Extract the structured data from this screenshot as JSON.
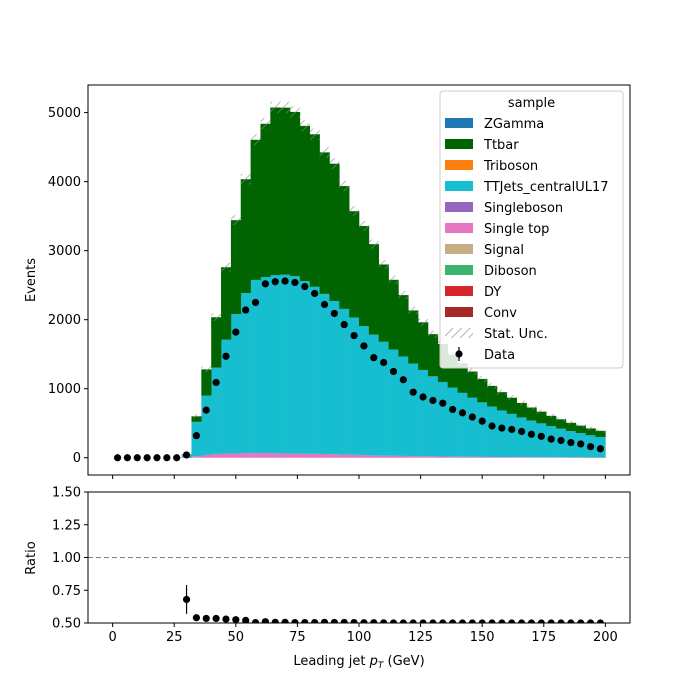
{
  "chart_data": {
    "type": "bar",
    "stacked": true,
    "xlabel": "Leading jet  p_T (GeV)",
    "main": {
      "ylabel": "Events",
      "xlim": [
        -10,
        210
      ],
      "ylim": [
        -250,
        5400
      ],
      "yticks": [
        0,
        1000,
        2000,
        3000,
        4000,
        5000
      ]
    },
    "ratio": {
      "ylabel": "Ratio",
      "ylim": [
        0.5,
        1.5
      ],
      "yticks": [
        "0.50",
        "0.75",
        "1.00",
        "1.25",
        "1.50"
      ],
      "reference_line": 1.0
    },
    "xticks": [
      0,
      25,
      50,
      75,
      100,
      125,
      150,
      175,
      200
    ],
    "bin_width": 4,
    "bin_centers": [
      2,
      6,
      10,
      14,
      18,
      22,
      26,
      30,
      34,
      38,
      42,
      46,
      50,
      54,
      58,
      62,
      66,
      70,
      74,
      78,
      82,
      86,
      90,
      94,
      98,
      102,
      106,
      110,
      114,
      118,
      122,
      126,
      130,
      134,
      138,
      142,
      146,
      150,
      154,
      158,
      162,
      166,
      170,
      174,
      178,
      182,
      186,
      190,
      194,
      198
    ],
    "legend": {
      "title": "sample",
      "entries": [
        "ZGamma",
        "Ttbar",
        "Triboson",
        "TTJets_centralUL17",
        "Singleboson",
        "Single top",
        "Signal",
        "Diboson",
        "DY",
        "Conv",
        "Stat. Unc.",
        "Data"
      ]
    },
    "series": [
      {
        "name": "Single top",
        "color": "#e377c2",
        "values": [
          0,
          0,
          0,
          0,
          0,
          0,
          0,
          5,
          20,
          40,
          55,
          60,
          62,
          65,
          66,
          68,
          64,
          62,
          60,
          58,
          56,
          54,
          50,
          46,
          42,
          38,
          34,
          30,
          28,
          26,
          24,
          22,
          20,
          18,
          16,
          15,
          14,
          12,
          11,
          10,
          10,
          9,
          8,
          8,
          7,
          7,
          6,
          6,
          5,
          5
        ]
      },
      {
        "name": "TTJets_centralUL17",
        "color": "#17becf",
        "values": [
          0,
          0,
          0,
          0,
          0,
          0,
          0,
          45,
          500,
          860,
          1250,
          1650,
          2020,
          2320,
          2510,
          2550,
          2580,
          2590,
          2570,
          2500,
          2420,
          2320,
          2220,
          2110,
          1990,
          1870,
          1750,
          1650,
          1540,
          1440,
          1340,
          1250,
          1160,
          1080,
          1000,
          925,
          855,
          790,
          730,
          675,
          625,
          575,
          530,
          490,
          450,
          415,
          380,
          350,
          320,
          295
        ]
      },
      {
        "name": "Ttbar",
        "color": "#006400",
        "values": [
          0,
          0,
          0,
          0,
          0,
          0,
          0,
          0,
          80,
          380,
          730,
          1050,
          1360,
          1650,
          2030,
          2220,
          2430,
          2420,
          2380,
          2250,
          2210,
          2050,
          1990,
          1780,
          1540,
          1450,
          1310,
          1120,
          1010,
          890,
          770,
          690,
          610,
          550,
          480,
          430,
          380,
          340,
          300,
          265,
          235,
          210,
          190,
          170,
          150,
          135,
          120,
          110,
          100,
          90
        ]
      },
      {
        "name": "DY",
        "color": "#d62728",
        "values": [
          0,
          0,
          0,
          0,
          0,
          0,
          0,
          0,
          0,
          0,
          0,
          0,
          0,
          0,
          0,
          0,
          0,
          0,
          0,
          0,
          0,
          0,
          0,
          0,
          0,
          0,
          0,
          0,
          0,
          0,
          0,
          0,
          0,
          0,
          0,
          0,
          0,
          0,
          0,
          0,
          0,
          0,
          0,
          0,
          0,
          0,
          0,
          0,
          0,
          0
        ]
      }
    ],
    "data": {
      "name": "Data",
      "values": [
        0,
        0,
        0,
        0,
        0,
        0,
        0,
        40,
        320,
        690,
        1090,
        1470,
        1820,
        2140,
        2250,
        2520,
        2550,
        2560,
        2540,
        2480,
        2380,
        2220,
        2090,
        1930,
        1770,
        1620,
        1450,
        1380,
        1250,
        1130,
        950,
        880,
        830,
        790,
        700,
        650,
        590,
        530,
        460,
        430,
        410,
        380,
        340,
        310,
        270,
        250,
        220,
        200,
        160,
        130
      ]
    },
    "ratio_values": [
      null,
      null,
      null,
      null,
      null,
      null,
      null,
      0.68,
      0.54,
      0.535,
      0.535,
      0.53,
      0.525,
      0.52,
      0.503,
      0.51,
      0.505,
      0.505,
      0.503,
      0.503,
      0.503,
      0.505,
      0.504,
      0.504,
      0.503,
      0.502,
      0.502,
      0.501,
      0.5,
      0.5,
      0.5,
      0.5,
      0.5,
      0.5,
      0.5,
      0.5,
      0.5,
      0.5,
      0.5,
      0.5,
      0.5,
      0.5,
      0.5,
      0.5,
      0.5,
      0.5,
      0.5,
      0.5,
      0.5,
      0.5
    ],
    "ratio_err": [
      0,
      0,
      0,
      0,
      0,
      0,
      0,
      0.11,
      0,
      0,
      0,
      0,
      0,
      0,
      0,
      0,
      0,
      0,
      0,
      0,
      0,
      0,
      0,
      0,
      0,
      0,
      0,
      0,
      0,
      0,
      0,
      0,
      0,
      0,
      0,
      0,
      0,
      0,
      0,
      0,
      0,
      0,
      0,
      0,
      0,
      0,
      0,
      0,
      0,
      0
    ],
    "colors": {
      "ZGamma": "#1f77b4",
      "Ttbar": "#006400",
      "Triboson": "#ff7f0e",
      "TTJets_centralUL17": "#17becf",
      "Singleboson": "#9467bd",
      "Single top": "#e377c2",
      "Signal": "#c8ad84",
      "Diboson": "#3cb371",
      "DY": "#d62728",
      "Conv": "#a52a2a"
    }
  }
}
